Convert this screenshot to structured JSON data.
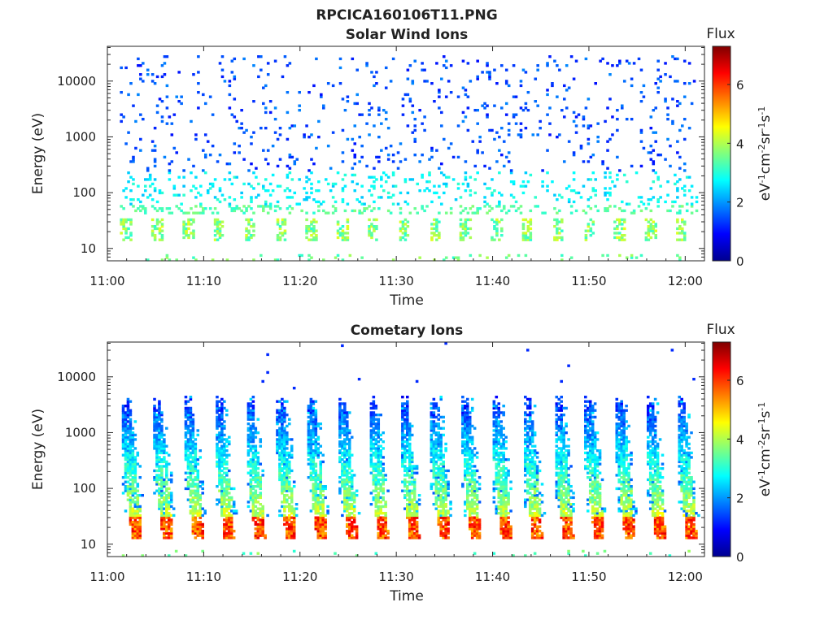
{
  "figure_title": "RPCICA160106T11.PNG",
  "colormap": [
    "#00008f",
    "#0000ff",
    "#007fff",
    "#00ffff",
    "#7fff7f",
    "#ffff00",
    "#ff7f00",
    "#ff0000",
    "#7f0000"
  ],
  "chart_data": [
    {
      "type": "heatmap",
      "title": "Solar Wind Ions",
      "xlabel": "Time",
      "ylabel": "Energy (eV)",
      "x_ticks": [
        "11:00",
        "11:10",
        "11:20",
        "11:30",
        "11:40",
        "11:50",
        "12:00"
      ],
      "x_range_minutes": [
        0,
        62
      ],
      "y_scale": "log",
      "y_ticks": [
        "10",
        "100",
        "1000",
        "10000"
      ],
      "y_range": [
        6,
        42000
      ],
      "colorbar": {
        "title": "Flux",
        "label": "eV-1cm-2sr-1s-1",
        "range": [
          0,
          7.3
        ],
        "ticks": [
          "0",
          "2",
          "4",
          "6"
        ]
      },
      "grid": false,
      "data_start_minutes": 1.3,
      "data_end_minutes": 61.3,
      "low_energy_band": {
        "peak_energies_eV": [
          20,
          28
        ],
        "flux_level": 4
      },
      "scatter_energy_range_eV": [
        40,
        30000
      ],
      "scatter_flux_level": 1.3,
      "period_minutes": 3.2
    },
    {
      "type": "heatmap",
      "title": "Cometary Ions",
      "xlabel": "Time",
      "ylabel": "Energy (eV)",
      "x_ticks": [
        "11:00",
        "11:10",
        "11:20",
        "11:30",
        "11:40",
        "11:50",
        "12:00"
      ],
      "x_range_minutes": [
        0,
        62
      ],
      "y_scale": "log",
      "y_ticks": [
        "10",
        "100",
        "1000",
        "10000"
      ],
      "y_range": [
        6,
        42000
      ],
      "colorbar": {
        "title": "Flux",
        "label": "eV-1cm-2sr-1s-1",
        "range": [
          0,
          7.3
        ],
        "ticks": [
          "0",
          "2",
          "4",
          "6"
        ]
      },
      "grid": false,
      "data_start_minutes": 1.5,
      "data_end_minutes": 61.3,
      "burst_period_minutes": 3.2,
      "burst_count": 19,
      "burst_peak_energy_eV": [
        15,
        25
      ],
      "burst_peak_flux": 6.3,
      "burst_top_energy_eV": 4000
    }
  ]
}
